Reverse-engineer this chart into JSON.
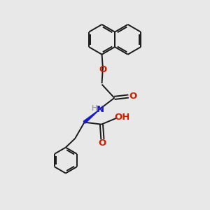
{
  "bg_color": "#e8e8e8",
  "bond_color": "#1a1a1a",
  "O_color": "#cc2200",
  "N_color": "#1a1acc",
  "H_color": "#888888",
  "font_size": 8.5,
  "lw": 1.4,
  "xlim": [
    0,
    10
  ],
  "ylim": [
    0,
    10
  ]
}
